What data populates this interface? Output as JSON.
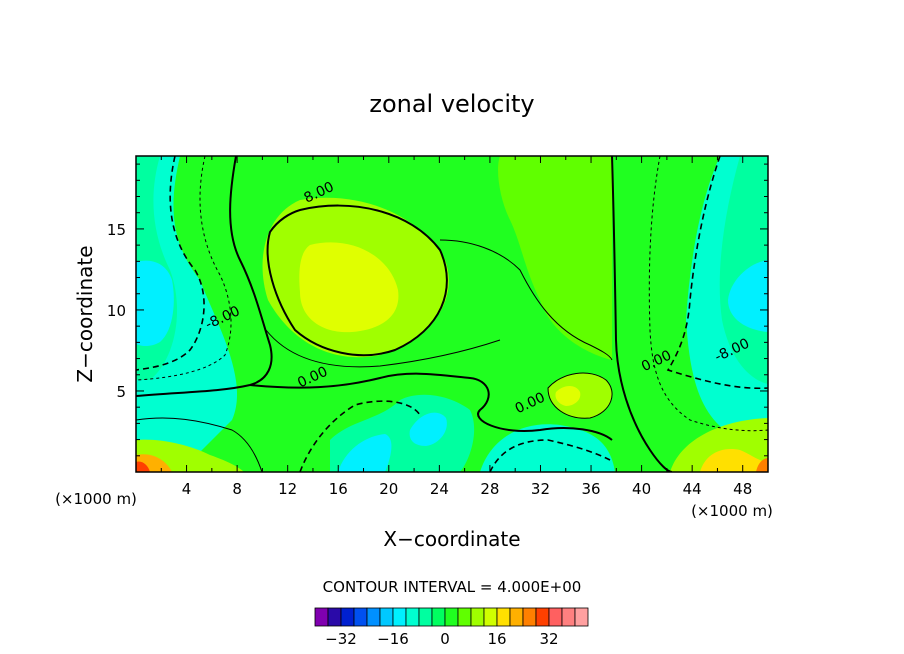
{
  "chart_data": {
    "type": "heatmap",
    "title": "zonal velocity",
    "xlabel": "X−coordinate",
    "ylabel": "Z−coordinate",
    "x_unit_left": "(×1000 m)",
    "x_unit_right": "(×1000 m)",
    "xlim": [
      0,
      50
    ],
    "ylim": [
      0,
      19.5
    ],
    "x_ticks": [
      4,
      8,
      12,
      16,
      20,
      24,
      28,
      32,
      36,
      40,
      44,
      48
    ],
    "y_ticks": [
      5,
      10,
      15
    ],
    "contour_interval_text": "CONTOUR INTERVAL = 4.000E+00",
    "contour_labels": [
      {
        "text": "8.00",
        "x": 13.5,
        "y": 16.6
      },
      {
        "text": "-8.00",
        "x": 5.7,
        "y": 8.8
      },
      {
        "text": "0.00",
        "x": 13,
        "y": 5.2
      },
      {
        "text": "0.00",
        "x": 30.2,
        "y": 3.6
      },
      {
        "text": "0.00",
        "x": 40.2,
        "y": 6.2
      },
      {
        "text": "-8.00",
        "x": 46,
        "y": 6.8
      }
    ],
    "color_levels": [
      -40,
      -36,
      -32,
      -28,
      -24,
      -20,
      -16,
      -12,
      -8,
      -4,
      0,
      4,
      8,
      12,
      16,
      20,
      24,
      28,
      32,
      36,
      40
    ],
    "colorbar_ticks": [
      -32,
      -16,
      0,
      16,
      32
    ],
    "colorbar_colors": [
      "#8000b0",
      "#2a0aa8",
      "#0020d0",
      "#0050f0",
      "#0090ff",
      "#00c8ff",
      "#00f0ff",
      "#00ffd0",
      "#00ffa0",
      "#00ff60",
      "#20ff20",
      "#60ff00",
      "#a0ff00",
      "#d0ff00",
      "#ffe000",
      "#ffb000",
      "#ff8000",
      "#ff4000",
      "#ff6060",
      "#ff8080",
      "#ffa0a0"
    ],
    "grid": false,
    "legend": "bottom"
  }
}
